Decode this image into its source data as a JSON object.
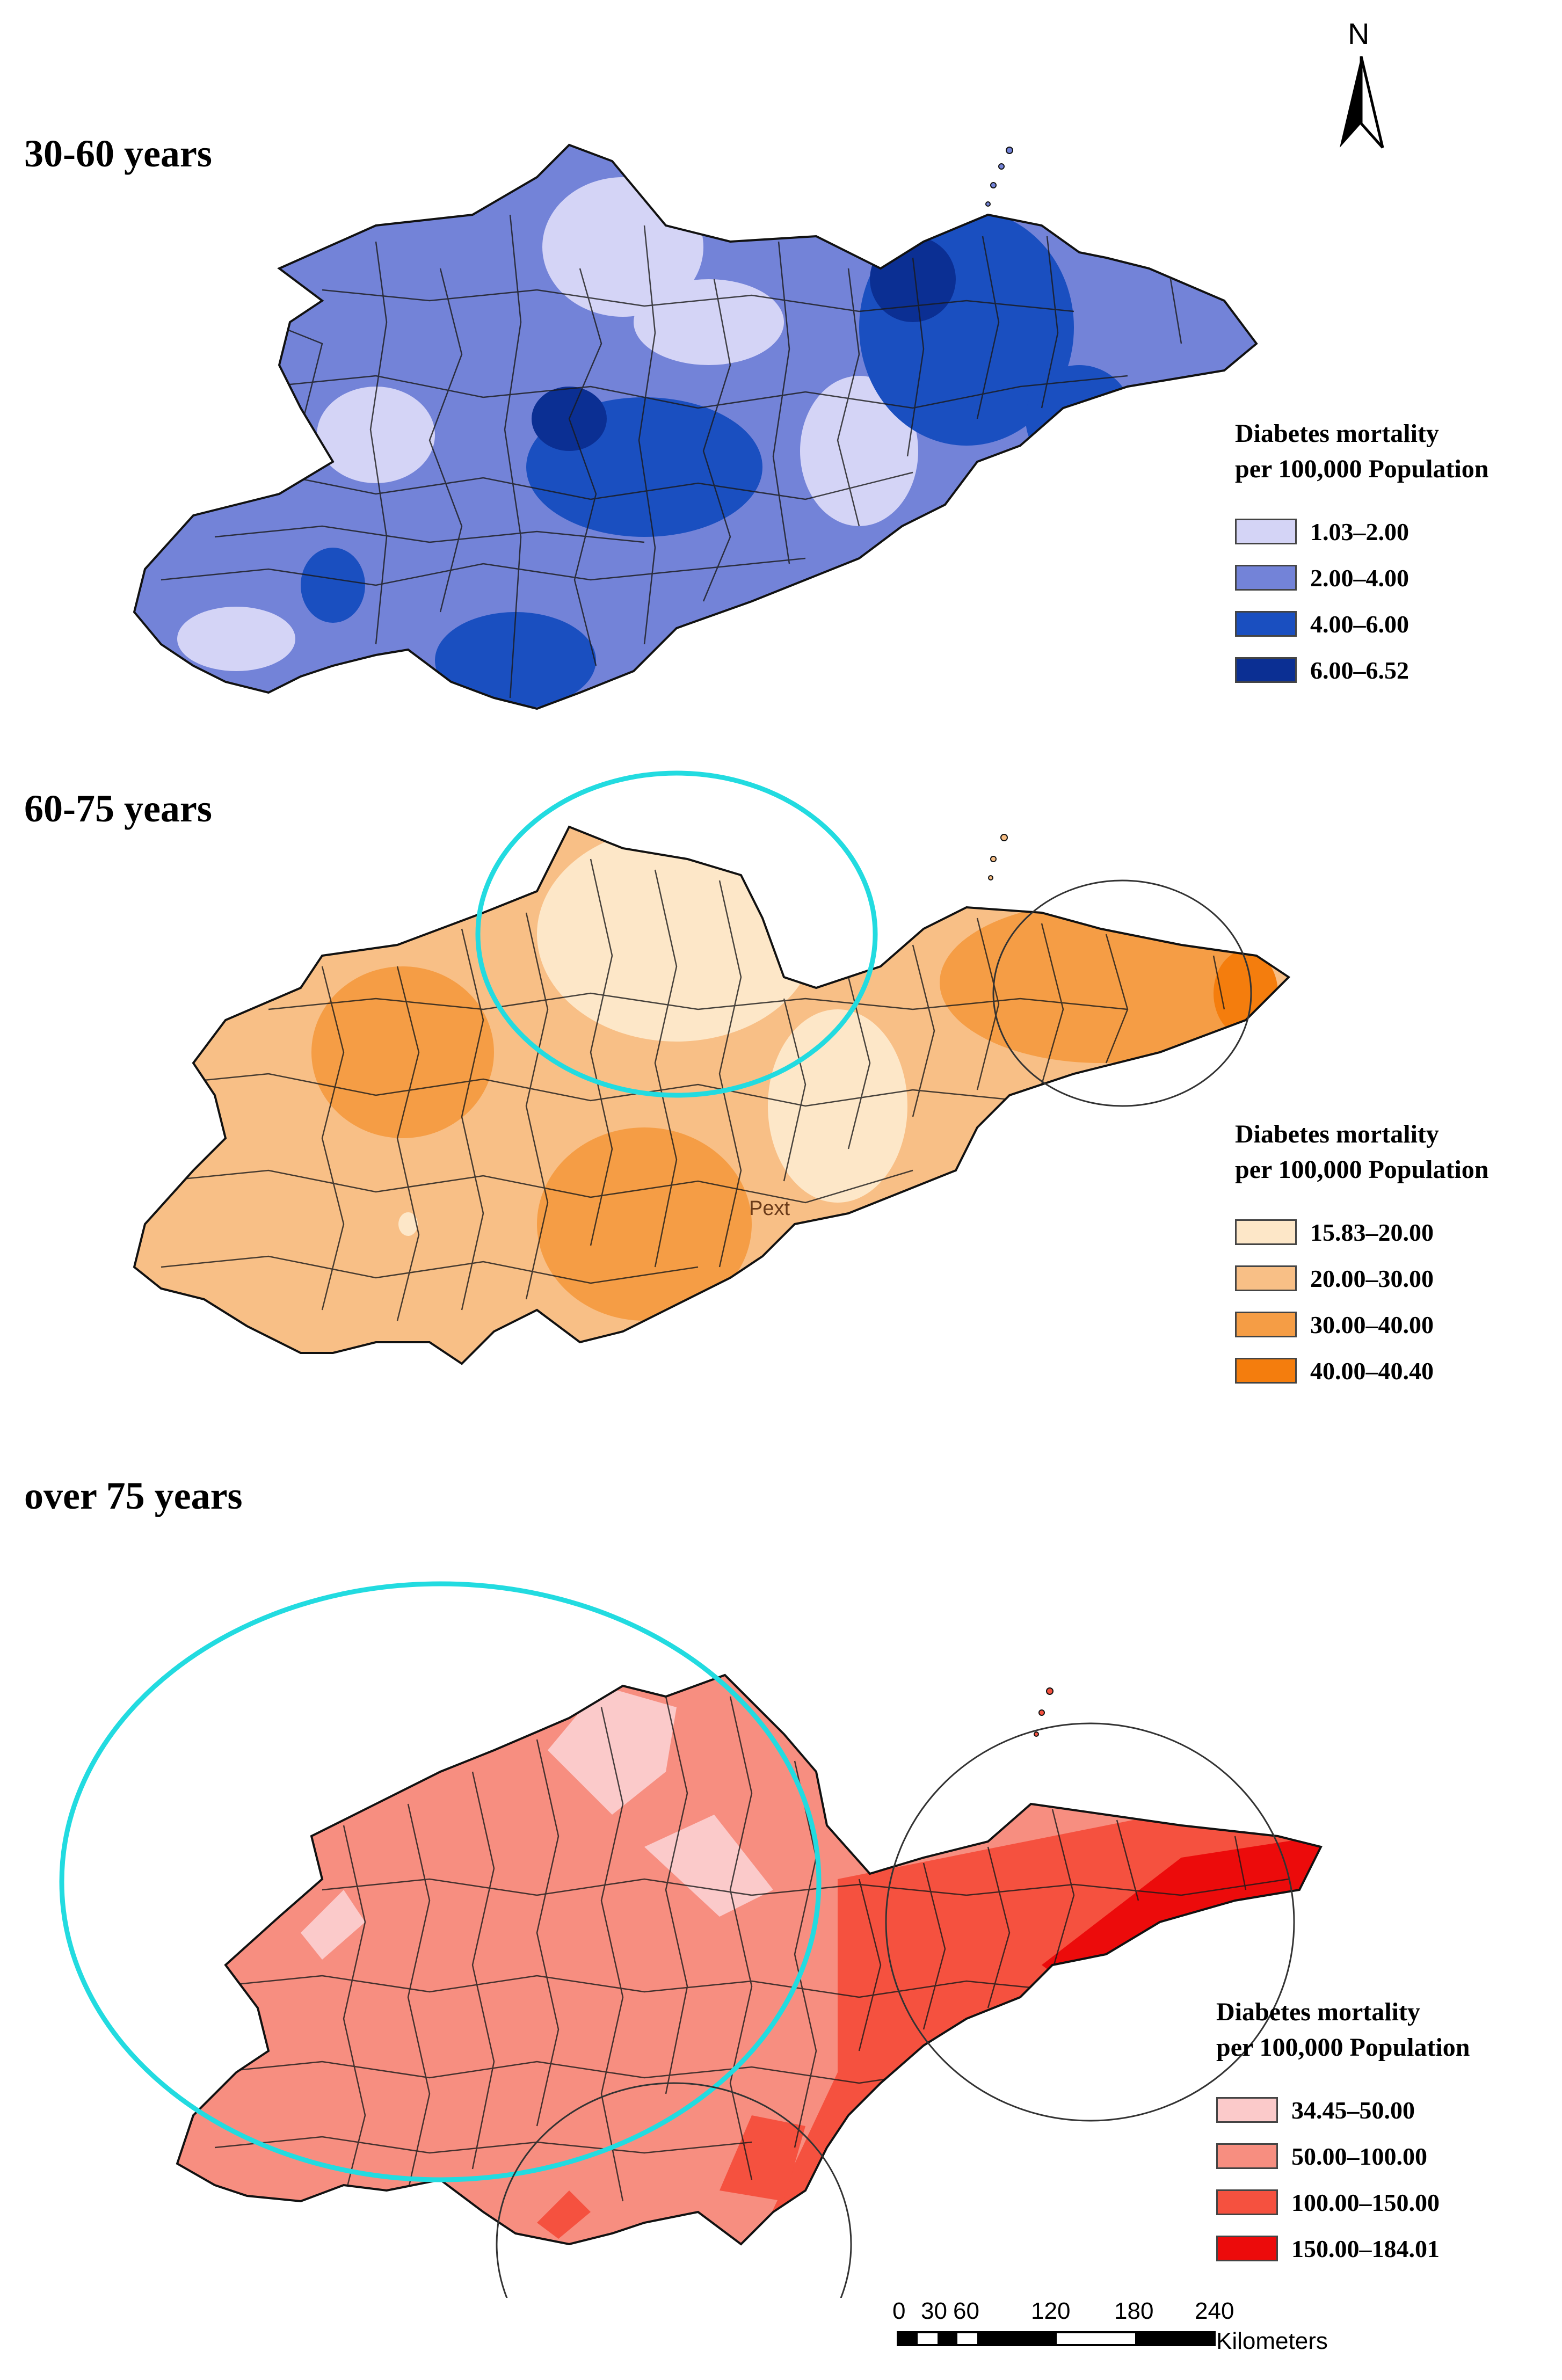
{
  "north_arrow": {
    "label": "N"
  },
  "panels": [
    {
      "title": "30-60 years",
      "legend_title_line1": "Diabetes mortality",
      "legend_title_line2": "per 100,000 Population",
      "classes": [
        {
          "label": "1.03–2.00",
          "color": "#d4d4f6"
        },
        {
          "label": "2.00–4.00",
          "color": "#7383d8"
        },
        {
          "label": "4.00–6.00",
          "color": "#1a4fc0"
        },
        {
          "label": "6.00–6.52",
          "color": "#0b2f93"
        }
      ]
    },
    {
      "title": "60-75 years",
      "legend_title_line1": "Diabetes mortality",
      "legend_title_line2": "per 100,000 Population",
      "annotation": "Pext",
      "classes": [
        {
          "label": "15.83–20.00",
          "color": "#fde7c8"
        },
        {
          "label": "20.00–30.00",
          "color": "#f8bf86"
        },
        {
          "label": "30.00–40.00",
          "color": "#f59d45"
        },
        {
          "label": "40.00–40.40",
          "color": "#f47d0d"
        }
      ]
    },
    {
      "title": "over 75 years",
      "legend_title_line1": "Diabetes mortality",
      "legend_title_line2": "per 100,000 Population",
      "classes": [
        {
          "label": "34.45–50.00",
          "color": "#fbcaca"
        },
        {
          "label": "50.00–100.00",
          "color": "#f78e80"
        },
        {
          "label": "100.00–150.00",
          "color": "#f5513f"
        },
        {
          "label": "150.00–184.01",
          "color": "#ec0b0b"
        }
      ]
    }
  ],
  "scale_bar": {
    "ticks": [
      "0",
      "30",
      "60",
      "120",
      "180",
      "240"
    ],
    "unit": "Kilometers"
  }
}
